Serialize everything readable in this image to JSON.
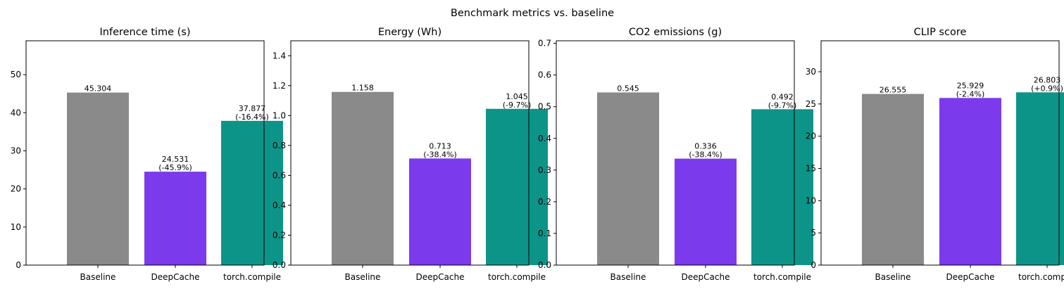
{
  "figure": {
    "title": "Benchmark metrics vs. baseline"
  },
  "colors": {
    "Baseline": "#8a8a8a",
    "DeepCache": "#7c3aed",
    "torch.compile": "#0d9488"
  },
  "chart_data": [
    {
      "type": "bar",
      "title": "Inference time (s)",
      "categories": [
        "Baseline",
        "DeepCache",
        "torch.compile"
      ],
      "values": [
        45.304,
        24.531,
        37.877
      ],
      "bar_labels": [
        [
          "45.304"
        ],
        [
          "24.531",
          "(-45.9%)"
        ],
        [
          "37.877",
          "(-16.4%)"
        ]
      ],
      "ylim": [
        0,
        58.9
      ],
      "yticks": [
        0,
        10,
        20,
        30,
        40,
        50
      ],
      "ytick_labels": [
        "0",
        "10",
        "20",
        "30",
        "40",
        "50"
      ],
      "xlabel": "",
      "ylabel": "",
      "grid": false
    },
    {
      "type": "bar",
      "title": "Energy (Wh)",
      "categories": [
        "Baseline",
        "DeepCache",
        "torch.compile"
      ],
      "values": [
        1.158,
        0.713,
        1.045
      ],
      "bar_labels": [
        [
          "1.158"
        ],
        [
          "0.713",
          "(-38.4%)"
        ],
        [
          "1.045",
          "(-9.7%)"
        ]
      ],
      "ylim": [
        0,
        1.5
      ],
      "yticks": [
        0.0,
        0.2,
        0.4,
        0.6,
        0.8,
        1.0,
        1.2,
        1.4
      ],
      "ytick_labels": [
        "0.0",
        "0.2",
        "0.4",
        "0.6",
        "0.8",
        "1.0",
        "1.2",
        "1.4"
      ],
      "xlabel": "",
      "ylabel": "",
      "grid": false
    },
    {
      "type": "bar",
      "title": "CO2 emissions (g)",
      "categories": [
        "Baseline",
        "DeepCache",
        "torch.compile"
      ],
      "values": [
        0.545,
        0.336,
        0.492
      ],
      "bar_labels": [
        [
          "0.545"
        ],
        [
          "0.336",
          "(-38.4%)"
        ],
        [
          "0.492",
          "(-9.7%)"
        ]
      ],
      "ylim": [
        0,
        0.708
      ],
      "yticks": [
        0.0,
        0.1,
        0.2,
        0.3,
        0.4,
        0.5,
        0.6,
        0.7
      ],
      "ytick_labels": [
        "0.0",
        "0.1",
        "0.2",
        "0.3",
        "0.4",
        "0.5",
        "0.6",
        "0.7"
      ],
      "xlabel": "",
      "ylabel": "",
      "grid": false
    },
    {
      "type": "bar",
      "title": "CLIP score",
      "categories": [
        "Baseline",
        "DeepCache",
        "torch.compile"
      ],
      "values": [
        26.555,
        25.929,
        26.803
      ],
      "bar_labels": [
        [
          "26.555"
        ],
        [
          "25.929",
          "(-2.4%)"
        ],
        [
          "26.803",
          "(+0.9%)"
        ]
      ],
      "ylim": [
        0,
        34.8
      ],
      "yticks": [
        0,
        5,
        10,
        15,
        20,
        25,
        30
      ],
      "ytick_labels": [
        "0",
        "5",
        "10",
        "15",
        "20",
        "25",
        "30"
      ],
      "xlabel": "",
      "ylabel": "",
      "grid": false
    }
  ]
}
